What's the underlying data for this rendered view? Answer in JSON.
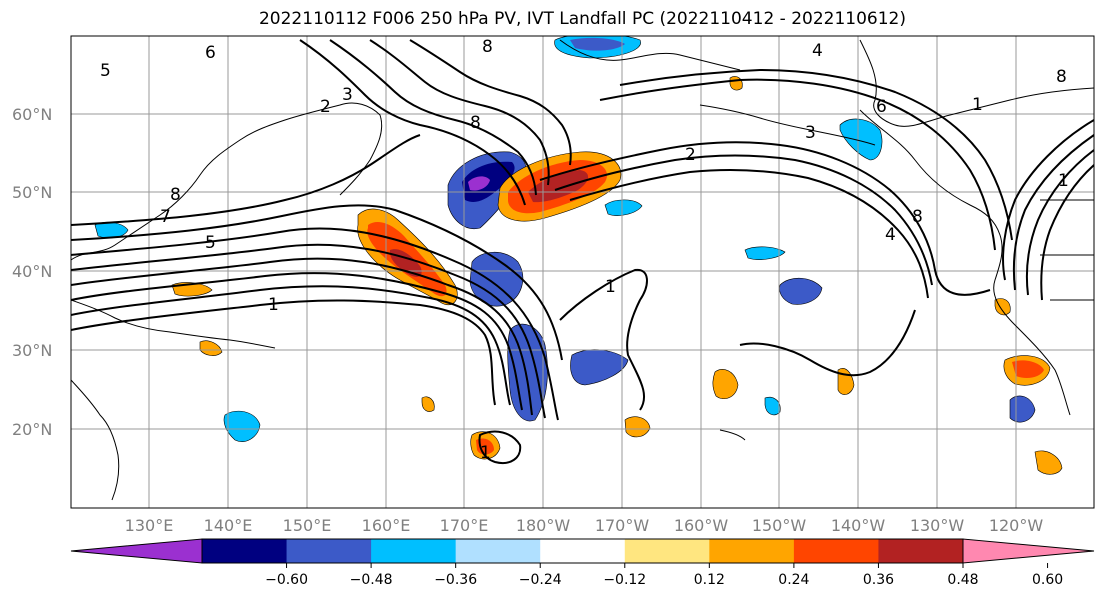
{
  "title": "2022110112 F006 250 hPa PV, IVT Landfall PC (2022110412 - 2022110612)",
  "lat_labels": [
    "60°N",
    "50°N",
    "40°N",
    "30°N",
    "20°N"
  ],
  "lon_labels": [
    "130°E",
    "140°E",
    "150°E",
    "160°E",
    "170°E",
    "180°W",
    "170°W",
    "160°W",
    "150°W",
    "140°W",
    "130°W",
    "120°W"
  ],
  "colorbar": {
    "colors": [
      "#9b30d0",
      "#000080",
      "#3c5ac8",
      "#00bfff",
      "#b0e0ff",
      "#ffffff",
      "#ffe680",
      "#ffa500",
      "#ff4500",
      "#b22222",
      "#ff88b0"
    ],
    "tick_labels": [
      "−0.60",
      "−0.48",
      "−0.36",
      "−0.24",
      "−0.12",
      "0.12",
      "0.24",
      "0.36",
      "0.48",
      "0.60"
    ]
  },
  "contour_labels": [
    "6",
    "8",
    "5",
    "2",
    "3",
    "7",
    "1",
    "4"
  ],
  "colors": {
    "negative_strong": "#000080",
    "positive_strong": "#ff4500"
  }
}
